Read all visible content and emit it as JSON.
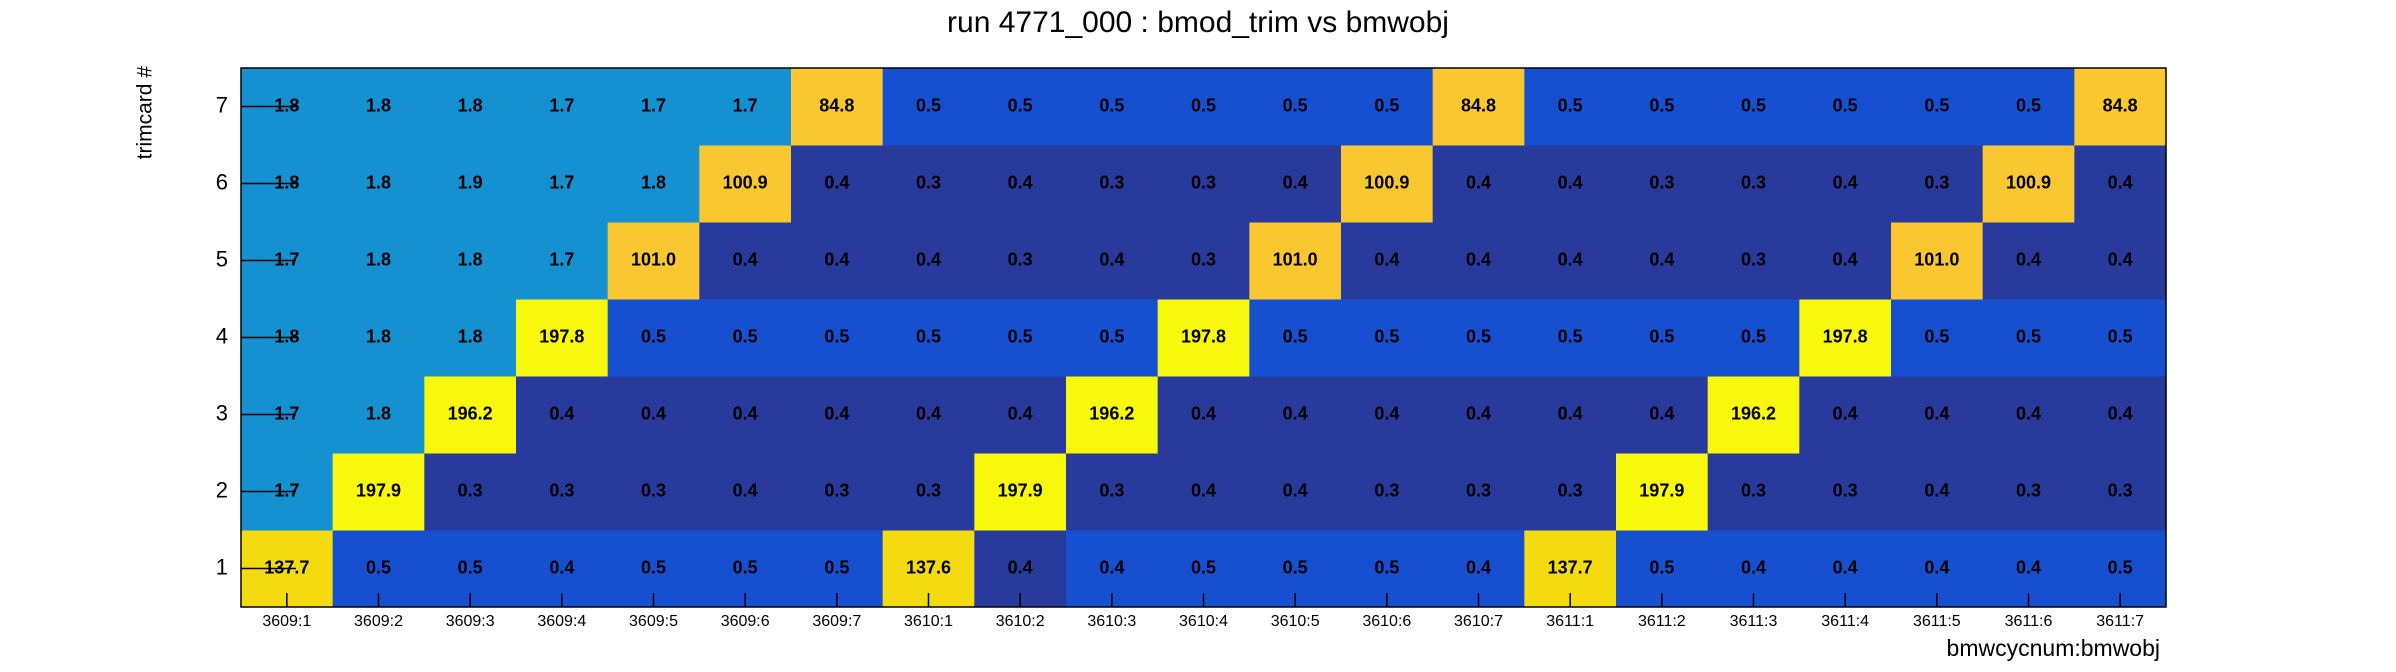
{
  "chart_data": {
    "type": "heatmap",
    "title": "run 4771_000 : bmod_trim vs bmwobj",
    "x_label": "bmwcycnum:bmwobj",
    "y_label": "trimcard #",
    "categories": [
      "3609:1",
      "3609:2",
      "3609:3",
      "3609:4",
      "3609:5",
      "3609:6",
      "3609:7",
      "3610:1",
      "3610:2",
      "3610:3",
      "3610:4",
      "3610:5",
      "3610:6",
      "3610:7",
      "3611:1",
      "3611:2",
      "3611:3",
      "3611:4",
      "3611:5",
      "3611:6",
      "3611:7"
    ],
    "y_categories": [
      1,
      2,
      3,
      4,
      5,
      6,
      7
    ],
    "values": [
      [
        137.7,
        0.5,
        0.5,
        0.4,
        0.5,
        0.5,
        0.5,
        137.6,
        0.4,
        0.4,
        0.5,
        0.5,
        0.5,
        0.4,
        137.7,
        0.5,
        0.4,
        0.4,
        0.4,
        0.4,
        0.5
      ],
      [
        1.7,
        197.9,
        0.3,
        0.3,
        0.3,
        0.4,
        0.3,
        0.3,
        197.9,
        0.3,
        0.4,
        0.4,
        0.3,
        0.3,
        0.3,
        197.9,
        0.3,
        0.3,
        0.4,
        0.3,
        0.3
      ],
      [
        1.7,
        1.8,
        196.2,
        0.4,
        0.4,
        0.4,
        0.4,
        0.4,
        0.4,
        196.2,
        0.4,
        0.4,
        0.4,
        0.4,
        0.4,
        0.4,
        196.2,
        0.4,
        0.4,
        0.4,
        0.4
      ],
      [
        1.8,
        1.8,
        1.8,
        197.8,
        0.5,
        0.5,
        0.5,
        0.5,
        0.5,
        0.5,
        197.8,
        0.5,
        0.5,
        0.5,
        0.5,
        0.5,
        0.5,
        197.8,
        0.5,
        0.5,
        0.5
      ],
      [
        1.7,
        1.8,
        1.8,
        1.7,
        101.0,
        0.4,
        0.4,
        0.4,
        0.3,
        0.4,
        0.3,
        101.0,
        0.4,
        0.4,
        0.4,
        0.4,
        0.3,
        0.4,
        101.0,
        0.4,
        0.4
      ],
      [
        1.8,
        1.8,
        1.9,
        1.7,
        1.8,
        100.9,
        0.4,
        0.3,
        0.4,
        0.3,
        0.3,
        0.4,
        100.9,
        0.4,
        0.4,
        0.3,
        0.3,
        0.4,
        0.3,
        100.9,
        0.4
      ],
      [
        1.8,
        1.8,
        1.8,
        1.7,
        1.7,
        1.7,
        84.8,
        0.5,
        0.5,
        0.5,
        0.5,
        0.5,
        0.5,
        84.8,
        0.5,
        0.5,
        0.5,
        0.5,
        0.5,
        0.5,
        84.8
      ]
    ],
    "value_labels": [
      [
        "137.7",
        "0.5",
        "0.5",
        "0.4",
        "0.5",
        "0.5",
        "0.5",
        "137.6",
        "0.4",
        "0.4",
        "0.5",
        "0.5",
        "0.5",
        "0.4",
        "137.7",
        "0.5",
        "0.4",
        "0.4",
        "0.4",
        "0.4",
        "0.5"
      ],
      [
        "1.7",
        "197.9",
        "0.3",
        "0.3",
        "0.3",
        "0.4",
        "0.3",
        "0.3",
        "197.9",
        "0.3",
        "0.4",
        "0.4",
        "0.3",
        "0.3",
        "0.3",
        "197.9",
        "0.3",
        "0.3",
        "0.4",
        "0.3",
        "0.3"
      ],
      [
        "1.7",
        "1.8",
        "196.2",
        "0.4",
        "0.4",
        "0.4",
        "0.4",
        "0.4",
        "0.4",
        "196.2",
        "0.4",
        "0.4",
        "0.4",
        "0.4",
        "0.4",
        "0.4",
        "196.2",
        "0.4",
        "0.4",
        "0.4",
        "0.4"
      ],
      [
        "1.8",
        "1.8",
        "1.8",
        "197.8",
        "0.5",
        "0.5",
        "0.5",
        "0.5",
        "0.5",
        "0.5",
        "197.8",
        "0.5",
        "0.5",
        "0.5",
        "0.5",
        "0.5",
        "0.5",
        "197.8",
        "0.5",
        "0.5",
        "0.5"
      ],
      [
        "1.7",
        "1.8",
        "1.8",
        "1.7",
        "101.0",
        "0.4",
        "0.4",
        "0.4",
        "0.3",
        "0.4",
        "0.3",
        "101.0",
        "0.4",
        "0.4",
        "0.4",
        "0.4",
        "0.3",
        "0.4",
        "101.0",
        "0.4",
        "0.4"
      ],
      [
        "1.8",
        "1.8",
        "1.9",
        "1.7",
        "1.8",
        "100.9",
        "0.4",
        "0.3",
        "0.4",
        "0.3",
        "0.3",
        "0.4",
        "100.9",
        "0.4",
        "0.4",
        "0.3",
        "0.3",
        "0.4",
        "0.3",
        "100.9",
        "0.4"
      ],
      [
        "1.8",
        "1.8",
        "1.8",
        "1.7",
        "1.7",
        "1.7",
        "84.8",
        "0.5",
        "0.5",
        "0.5",
        "0.5",
        "0.5",
        "0.5",
        "84.8",
        "0.5",
        "0.5",
        "0.5",
        "0.5",
        "0.5",
        "0.5",
        "84.8"
      ]
    ],
    "colors": [
      [
        "#f3db10",
        "#1650d0",
        "#1650d0",
        "#1650d0",
        "#1650d0",
        "#1650d0",
        "#1650d0",
        "#f3db10",
        "#283a9c",
        "#1650d0",
        "#1650d0",
        "#1650d0",
        "#1650d0",
        "#1650d0",
        "#f3db10",
        "#1650d0",
        "#1650d0",
        "#1650d0",
        "#1650d0",
        "#1650d0",
        "#1650d0"
      ],
      [
        "#1591d1",
        "#f7f80c",
        "#283a9c",
        "#283a9c",
        "#283a9c",
        "#283a9c",
        "#283a9c",
        "#283a9c",
        "#f7f80c",
        "#283a9c",
        "#283a9c",
        "#283a9c",
        "#283a9c",
        "#283a9c",
        "#283a9c",
        "#f7f80c",
        "#283a9c",
        "#283a9c",
        "#283a9c",
        "#283a9c",
        "#283a9c"
      ],
      [
        "#1591d1",
        "#1591d1",
        "#f7f80c",
        "#283a9c",
        "#283a9c",
        "#283a9c",
        "#283a9c",
        "#283a9c",
        "#283a9c",
        "#f7f80c",
        "#283a9c",
        "#283a9c",
        "#283a9c",
        "#283a9c",
        "#283a9c",
        "#283a9c",
        "#f7f80c",
        "#283a9c",
        "#283a9c",
        "#283a9c",
        "#283a9c"
      ],
      [
        "#1591d1",
        "#1591d1",
        "#1591d1",
        "#f7f80c",
        "#1650d0",
        "#1650d0",
        "#1650d0",
        "#1650d0",
        "#1650d0",
        "#1650d0",
        "#f7f80c",
        "#1650d0",
        "#1650d0",
        "#1650d0",
        "#1650d0",
        "#1650d0",
        "#1650d0",
        "#f7f80c",
        "#1650d0",
        "#1650d0",
        "#1650d0"
      ],
      [
        "#1591d1",
        "#1591d1",
        "#1591d1",
        "#1591d1",
        "#f9c72f",
        "#283a9c",
        "#283a9c",
        "#283a9c",
        "#283a9c",
        "#283a9c",
        "#283a9c",
        "#f9c72f",
        "#283a9c",
        "#283a9c",
        "#283a9c",
        "#283a9c",
        "#283a9c",
        "#283a9c",
        "#f9c72f",
        "#283a9c",
        "#283a9c"
      ],
      [
        "#1591d1",
        "#1591d1",
        "#1591d1",
        "#1591d1",
        "#1591d1",
        "#f9c72f",
        "#283a9c",
        "#283a9c",
        "#283a9c",
        "#283a9c",
        "#283a9c",
        "#283a9c",
        "#f9c72f",
        "#283a9c",
        "#283a9c",
        "#283a9c",
        "#283a9c",
        "#283a9c",
        "#283a9c",
        "#f9c72f",
        "#283a9c"
      ],
      [
        "#1591d1",
        "#1591d1",
        "#1591d1",
        "#1591d1",
        "#1591d1",
        "#1591d1",
        "#f9c72f",
        "#1650d0",
        "#1650d0",
        "#1650d0",
        "#1650d0",
        "#1650d0",
        "#1650d0",
        "#f9c72f",
        "#1650d0",
        "#1650d0",
        "#1650d0",
        "#1650d0",
        "#1650d0",
        "#1650d0",
        "#f9c72f"
      ]
    ]
  }
}
